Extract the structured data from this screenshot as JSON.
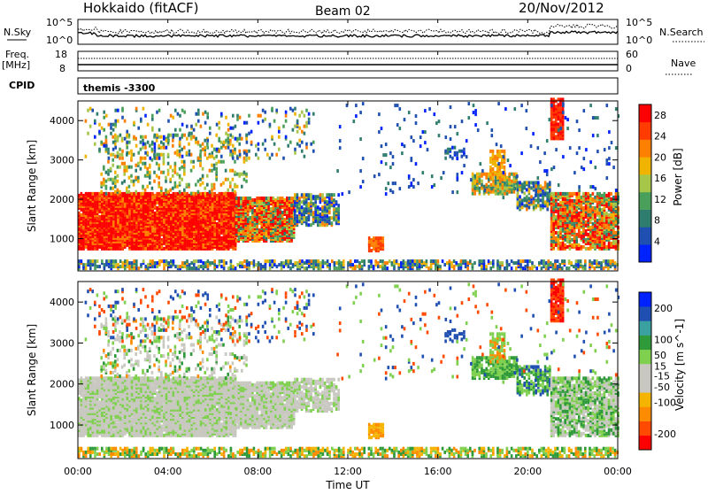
{
  "header": {
    "station": "Hokkaido (fitACF)",
    "beam": "Beam 02",
    "date": "20/Nov/2012"
  },
  "summary": {
    "nsky_label": "N.Sky",
    "nsearch_label": "N.Search",
    "noise_ticks": [
      "10^5",
      "10^0"
    ],
    "freq_label_1": "Freq.",
    "freq_label_2": "[MHz]",
    "freq_ticks": [
      "18",
      "8"
    ],
    "nave_label": "Nave",
    "nave_ticks": [
      "60",
      "0"
    ],
    "cpid_label": "CPID",
    "cpid_value": "themis -3300"
  },
  "colors": {
    "power_scale": [
      "#0022ff",
      "#1f4fb0",
      "#2f7d6e",
      "#4aa05a",
      "#a6c64a",
      "#f0b400",
      "#ff7f00",
      "#ff3b00",
      "#ff0000"
    ],
    "velocity_scale": [
      "#ff0000",
      "#ff4a00",
      "#ff8c00",
      "#f5b400",
      "#c8c8c0",
      "#c8c8c0",
      "#7fd04f",
      "#2e9a3a",
      "#3aa0a0",
      "#1f4fb0",
      "#0022ff"
    ],
    "ground_scatter": "#c8c8c0"
  },
  "chart_data": [
    {
      "type": "heatmap",
      "name": "power",
      "title": "",
      "xlabel": "Time UT",
      "ylabel": "Slant Range [km]",
      "x_ticks": [
        "00:00",
        "04:00",
        "08:00",
        "12:00",
        "16:00",
        "20:00",
        "00:00"
      ],
      "y_ticks": [
        1000,
        2000,
        3000,
        4000
      ],
      "ylim": [
        180,
        4500
      ],
      "colorbar": {
        "label": "Power [dB]",
        "ticks": [
          4,
          8,
          12,
          16,
          20,
          24,
          28
        ],
        "range": [
          0,
          30
        ]
      },
      "grid": false
    },
    {
      "type": "heatmap",
      "name": "velocity",
      "title": "",
      "xlabel": "Time UT",
      "ylabel": "Slant Range [km]",
      "x_ticks": [
        "00:00",
        "04:00",
        "08:00",
        "12:00",
        "16:00",
        "20:00",
        "00:00"
      ],
      "y_ticks": [
        1000,
        2000,
        3000,
        4000
      ],
      "ylim": [
        180,
        4500
      ],
      "colorbar": {
        "label": "Velocity [m s^-1]",
        "ticks": [
          200,
          100,
          50,
          15,
          -15,
          -50,
          -100,
          -200
        ],
        "range": [
          -250,
          250
        ]
      },
      "grid": false
    }
  ]
}
